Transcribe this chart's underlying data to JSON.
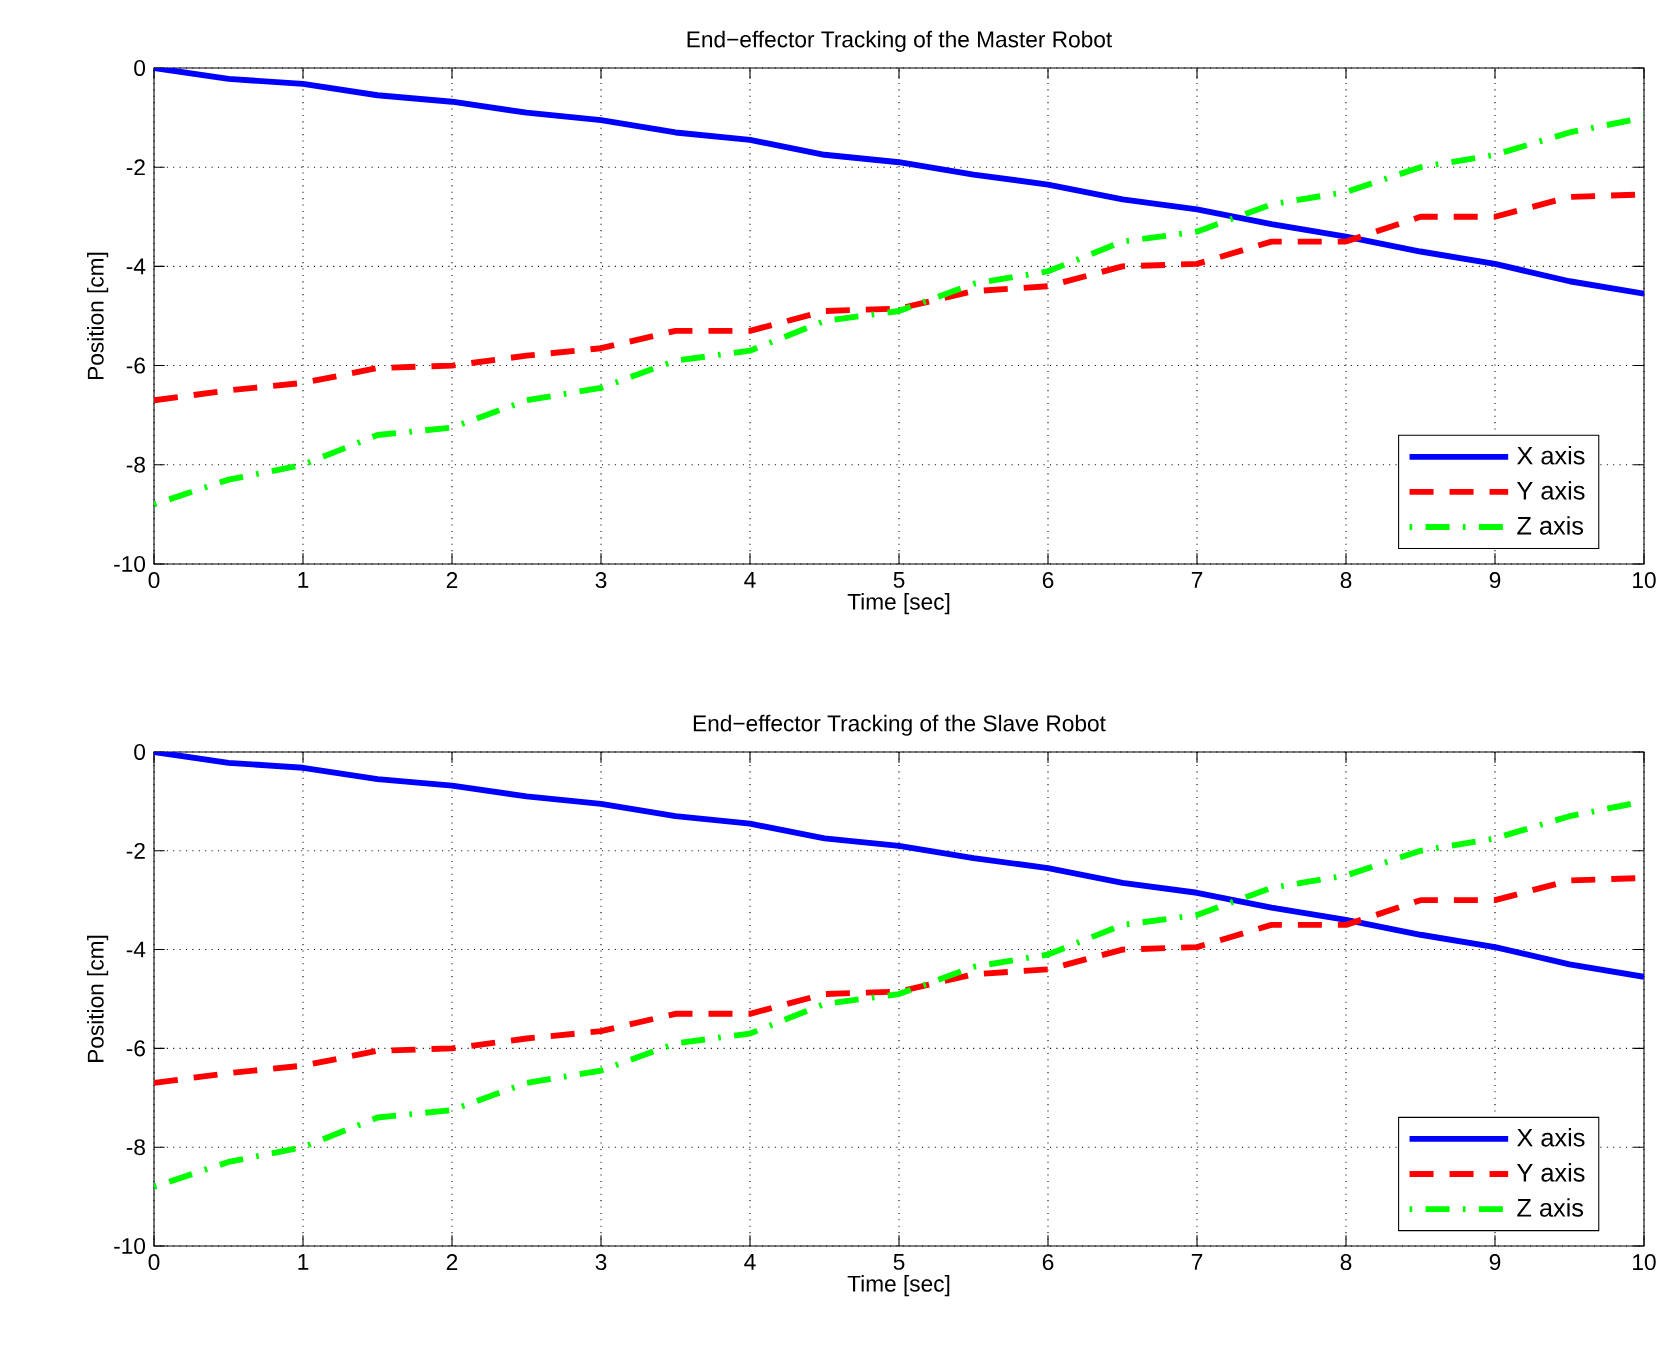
{
  "chart_data": [
    {
      "type": "line",
      "title": "End−effector Tracking of the Master Robot",
      "xlabel": "Time [sec]",
      "ylabel": "Position [cm]",
      "x": [
        0,
        0.5,
        1,
        1.5,
        2,
        2.5,
        3,
        3.5,
        4,
        4.5,
        5,
        5.5,
        6,
        6.5,
        7,
        7.5,
        8,
        8.5,
        9,
        9.5,
        10
      ],
      "series": [
        {
          "name": "X axis",
          "color": "#0000ff",
          "line_style": "solid",
          "values": [
            0,
            -0.22,
            -0.32,
            -0.55,
            -0.68,
            -0.9,
            -1.05,
            -1.3,
            -1.45,
            -1.75,
            -1.9,
            -2.15,
            -2.35,
            -2.65,
            -2.85,
            -3.15,
            -3.4,
            -3.7,
            -3.95,
            -4.3,
            -4.55
          ]
        },
        {
          "name": "Y axis",
          "color": "#ff0000",
          "line_style": "dashed",
          "values": [
            -6.7,
            -6.5,
            -6.35,
            -6.05,
            -6.0,
            -5.8,
            -5.65,
            -5.3,
            -5.3,
            -4.9,
            -4.85,
            -4.5,
            -4.4,
            -4.0,
            -3.95,
            -3.5,
            -3.5,
            -3.0,
            -3.0,
            -2.6,
            -2.55
          ]
        },
        {
          "name": "Z axis",
          "color": "#00ff00",
          "line_style": "dashdot",
          "values": [
            -8.8,
            -8.3,
            -8.0,
            -7.4,
            -7.25,
            -6.7,
            -6.45,
            -5.9,
            -5.7,
            -5.1,
            -4.9,
            -4.35,
            -4.1,
            -3.5,
            -3.3,
            -2.75,
            -2.5,
            -2.0,
            -1.75,
            -1.3,
            -1.0
          ]
        }
      ],
      "xlim": [
        0,
        10
      ],
      "ylim": [
        -10,
        0
      ],
      "xticks": [
        0,
        1,
        2,
        3,
        4,
        5,
        6,
        7,
        8,
        9,
        10
      ],
      "yticks": [
        -10,
        -8,
        -6,
        -4,
        -2,
        0
      ],
      "grid": true,
      "legend": "bottom right"
    },
    {
      "type": "line",
      "title": "End−effector Tracking of the Slave Robot",
      "xlabel": "Time [sec]",
      "ylabel": "Position [cm]",
      "x": [
        0,
        0.5,
        1,
        1.5,
        2,
        2.5,
        3,
        3.5,
        4,
        4.5,
        5,
        5.5,
        6,
        6.5,
        7,
        7.5,
        8,
        8.5,
        9,
        9.5,
        10
      ],
      "series": [
        {
          "name": "X axis",
          "color": "#0000ff",
          "line_style": "solid",
          "values": [
            0,
            -0.22,
            -0.32,
            -0.55,
            -0.68,
            -0.9,
            -1.05,
            -1.3,
            -1.45,
            -1.75,
            -1.9,
            -2.15,
            -2.35,
            -2.65,
            -2.85,
            -3.15,
            -3.4,
            -3.7,
            -3.95,
            -4.3,
            -4.55
          ]
        },
        {
          "name": "Y axis",
          "color": "#ff0000",
          "line_style": "dashed",
          "values": [
            -6.7,
            -6.5,
            -6.35,
            -6.05,
            -6.0,
            -5.8,
            -5.65,
            -5.3,
            -5.3,
            -4.9,
            -4.85,
            -4.5,
            -4.4,
            -4.0,
            -3.95,
            -3.5,
            -3.5,
            -3.0,
            -3.0,
            -2.6,
            -2.55
          ]
        },
        {
          "name": "Z axis",
          "color": "#00ff00",
          "line_style": "dashdot",
          "values": [
            -8.8,
            -8.3,
            -8.0,
            -7.4,
            -7.25,
            -6.7,
            -6.45,
            -5.9,
            -5.7,
            -5.1,
            -4.9,
            -4.35,
            -4.1,
            -3.5,
            -3.3,
            -2.75,
            -2.5,
            -2.0,
            -1.75,
            -1.3,
            -1.0
          ]
        }
      ],
      "xlim": [
        0,
        10
      ],
      "ylim": [
        -10,
        0
      ],
      "xticks": [
        0,
        1,
        2,
        3,
        4,
        5,
        6,
        7,
        8,
        9,
        10
      ],
      "yticks": [
        -10,
        -8,
        -6,
        -4,
        -2,
        0
      ],
      "grid": true,
      "legend": "bottom right"
    }
  ]
}
